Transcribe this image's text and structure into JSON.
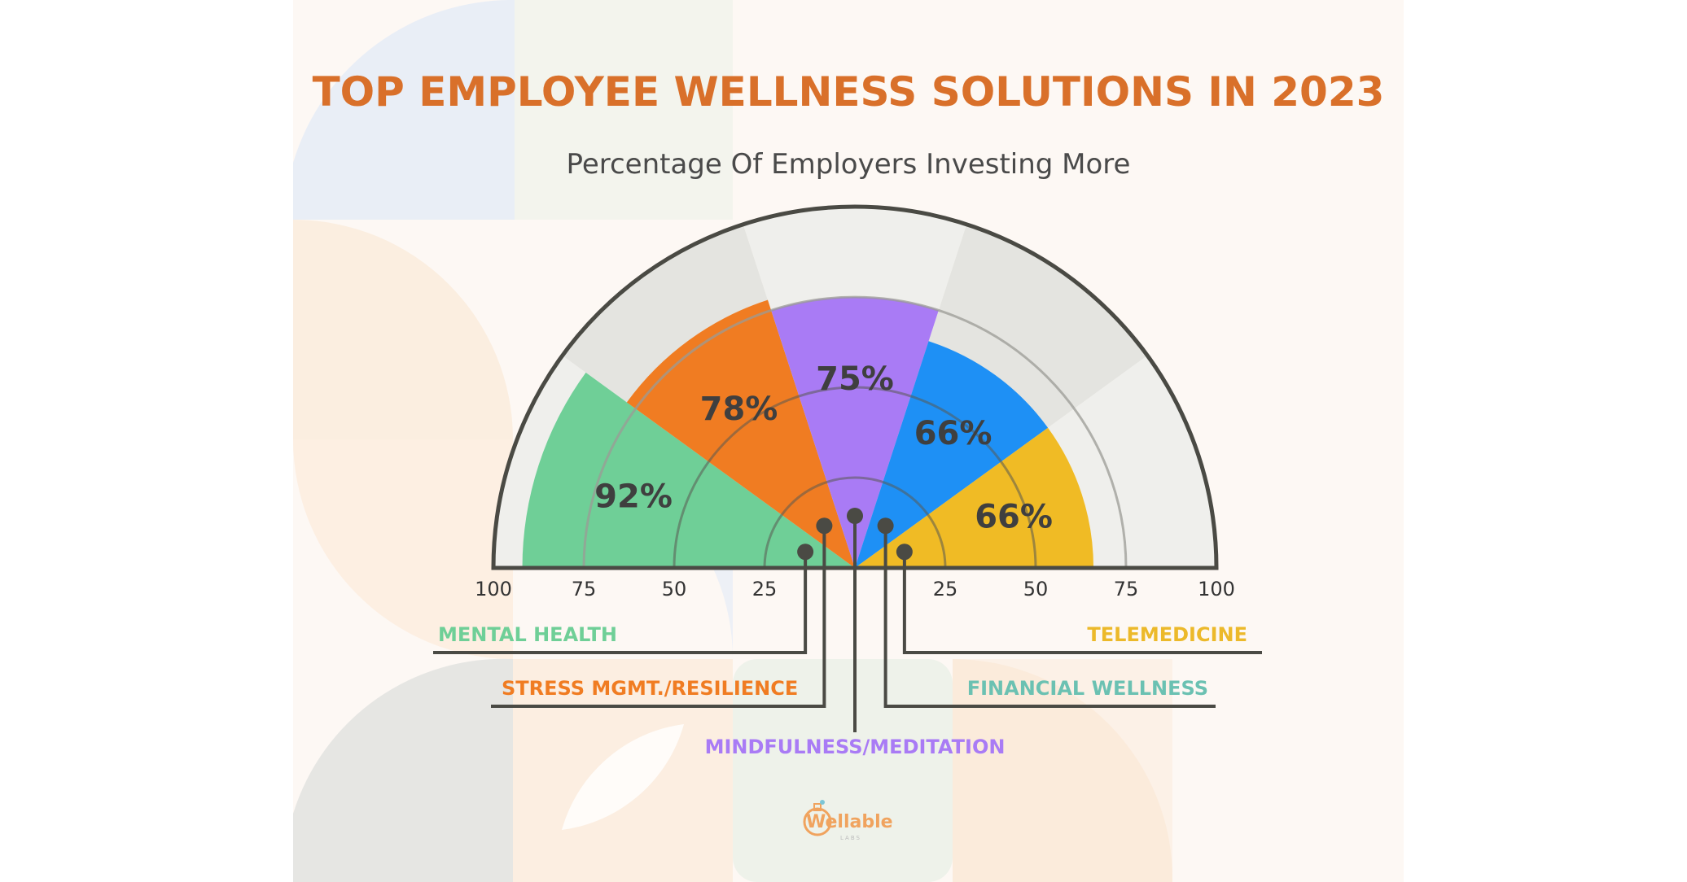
{
  "title": "TOP EMPLOYEE WELLNESS SOLUTIONS IN 2023",
  "subtitle": "Percentage Of Employers Investing More",
  "logo": {
    "name": "Wellable",
    "sub": "LABS"
  },
  "colors": {
    "title": "#d9702a",
    "outline": "#4a4a44",
    "track": "#efefec",
    "track_alt": "#e4e4e0"
  },
  "chart_data": {
    "type": "radial-bar",
    "title": "TOP EMPLOYEE WELLNESS SOLUTIONS IN 2023",
    "subtitle": "Percentage Of Employers Investing More",
    "scale": [
      0,
      100
    ],
    "ticks_left": [
      "100",
      "75",
      "50",
      "25"
    ],
    "ticks_right": [
      "25",
      "50",
      "75",
      "100"
    ],
    "categories": [
      "MENTAL HEALTH",
      "STRESS MGMT./RESILIENCE",
      "MINDFULNESS/MEDITATION",
      "FINANCIAL WELLNESS",
      "TELEMEDICINE"
    ],
    "values": [
      92,
      78,
      75,
      66,
      66
    ],
    "value_labels": [
      "92%",
      "78%",
      "75%",
      "66%",
      "66%"
    ],
    "series_colors": [
      "#6fcf97",
      "#f07c22",
      "#a97bf5",
      "#1e90f5",
      "#f0bb25"
    ],
    "category_label_colors": [
      "#6fcf97",
      "#f07c22",
      "#a97bf5",
      "#6bc1b2",
      "#ecb92a"
    ]
  }
}
